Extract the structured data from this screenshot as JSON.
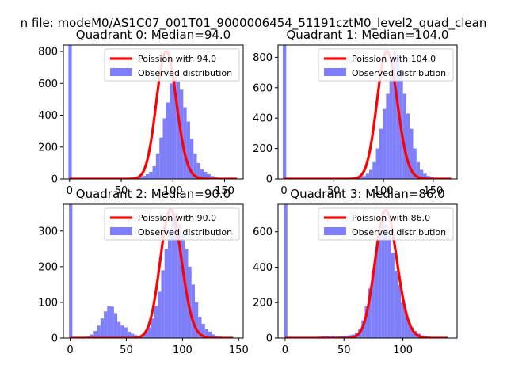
{
  "figure": {
    "suptitle": "n file: modeM0/AS1C07_001T01_9000006454_51191cztM0_level2_quad_clean"
  },
  "colors": {
    "fit": "#ff0000",
    "hist": "#7f7ffb",
    "axes": "#000000"
  },
  "chart_data": [
    {
      "type": "bar",
      "title": "Quadrant 0: Median=94.0",
      "xlabel": "",
      "ylabel": "",
      "xlim": [
        -6,
        168
      ],
      "ylim": [
        0,
        840
      ],
      "xticks": [
        0,
        50,
        100,
        150
      ],
      "yticks": [
        0,
        200,
        400,
        600,
        800
      ],
      "legend": {
        "placement": "upper right",
        "entries": [
          "Poission with 94.0",
          "Observed distribution"
        ]
      },
      "poisson_mean": 94,
      "fit_scale": 800,
      "fit_range": [
        0,
        162
      ],
      "spike": {
        "x": 0.5,
        "width": 3.2,
        "value": 840
      },
      "hist": {
        "bin_width": 3.3,
        "edges_start": 44,
        "values": [
          2,
          3,
          4,
          5,
          6,
          8,
          10,
          12,
          20,
          30,
          45,
          80,
          160,
          260,
          380,
          480,
          600,
          640,
          610,
          560,
          450,
          360,
          250,
          160,
          100,
          60,
          45,
          30,
          18,
          10,
          6,
          4,
          3,
          2
        ]
      }
    },
    {
      "type": "bar",
      "title": "Quadrant 1: Median=104.0",
      "xlabel": "",
      "ylabel": "",
      "xlim": [
        -6,
        174
      ],
      "ylim": [
        0,
        880
      ],
      "xticks": [
        0,
        50,
        100,
        150
      ],
      "yticks": [
        0,
        200,
        400,
        600,
        800
      ],
      "legend": {
        "placement": "upper right",
        "entries": [
          "Poission with 104.0",
          "Observed distribution"
        ]
      },
      "poisson_mean": 104,
      "fit_scale": 840,
      "fit_range": [
        0,
        168
      ],
      "spike": {
        "x": 0.5,
        "width": 3.4,
        "value": 880
      },
      "hist": {
        "bin_width": 3.4,
        "edges_start": 55,
        "values": [
          2,
          3,
          4,
          5,
          6,
          8,
          12,
          20,
          35,
          60,
          110,
          200,
          330,
          460,
          560,
          700,
          840,
          820,
          720,
          560,
          430,
          330,
          200,
          110,
          60,
          35,
          20,
          12,
          8,
          5,
          3,
          2
        ]
      }
    },
    {
      "type": "bar",
      "title": "Quadrant 2: Median=90.0",
      "xlabel": "",
      "ylabel": "",
      "xlim": [
        -6,
        154
      ],
      "ylim": [
        0,
        375
      ],
      "xticks": [
        0,
        50,
        100,
        150
      ],
      "yticks": [
        0,
        100,
        200,
        300
      ],
      "legend": {
        "placement": "upper right",
        "entries": [
          "Poission with 90.0",
          "Observed distribution"
        ]
      },
      "poisson_mean": 90,
      "fit_scale": 360,
      "fit_range": [
        0,
        145
      ],
      "spike": {
        "x": 0.5,
        "width": 3.0,
        "value": 375
      },
      "hist": {
        "bin_width": 3.0,
        "edges_start": 12,
        "values": [
          2,
          5,
          10,
          20,
          35,
          55,
          75,
          90,
          88,
          70,
          45,
          35,
          30,
          18,
          12,
          8,
          6,
          10,
          18,
          30,
          55,
          90,
          130,
          190,
          250,
          300,
          340,
          350,
          320,
          290,
          250,
          200,
          150,
          100,
          60,
          40,
          25,
          18,
          10,
          6,
          4,
          3,
          2
        ]
      }
    },
    {
      "type": "bar",
      "title": "Quadrant 3: Median=86.0",
      "xlabel": "",
      "ylabel": "",
      "xlim": [
        -6,
        146
      ],
      "ylim": [
        0,
        755
      ],
      "xticks": [
        0,
        50,
        100
      ],
      "yticks": [
        0,
        200,
        400,
        600
      ],
      "legend": {
        "placement": "upper right",
        "entries": [
          "Poission with 86.0",
          "Observed distribution"
        ]
      },
      "poisson_mean": 86,
      "fit_scale": 720,
      "fit_range": [
        0,
        138
      ],
      "spike": {
        "x": 0.5,
        "width": 2.8,
        "value": 755
      },
      "hist": {
        "bin_width": 2.8,
        "edges_start": 20,
        "values": [
          3,
          4,
          6,
          8,
          10,
          12,
          10,
          14,
          8,
          10,
          12,
          14,
          16,
          20,
          30,
          50,
          100,
          180,
          280,
          380,
          500,
          600,
          720,
          640,
          580,
          480,
          380,
          300,
          200,
          150,
          90,
          60,
          40,
          25,
          15,
          10,
          6,
          4,
          3
        ]
      }
    }
  ]
}
